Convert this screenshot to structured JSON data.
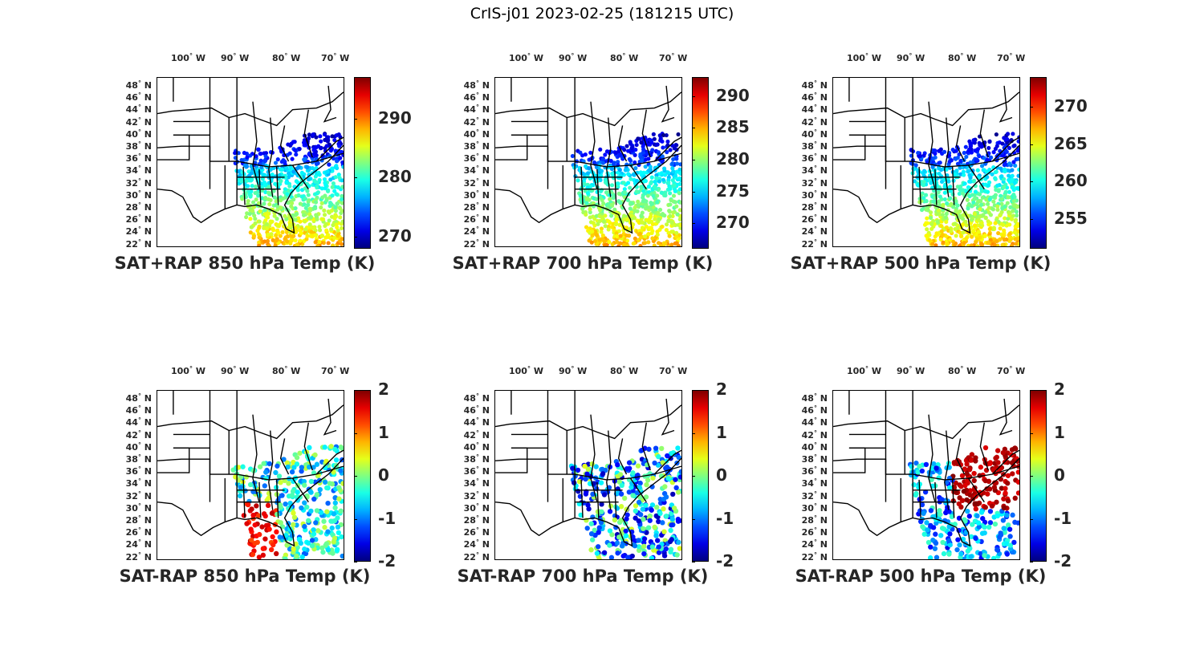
{
  "figure": {
    "title": "CrIS-j01 2023-02-25 (181215 UTC)"
  },
  "lon_labels": [
    "100",
    "90",
    "80",
    "70"
  ],
  "lon_suffix": "W",
  "lat_labels": [
    "48",
    "46",
    "44",
    "42",
    "40",
    "38",
    "36",
    "34",
    "32",
    "30",
    "28",
    "26",
    "24",
    "22"
  ],
  "lat_suffix": "N",
  "panels": [
    {
      "id": "sat-rap-sum-850",
      "title": "SAT+RAP 850 hPa Temp (K)",
      "colorbar": {
        "min": 268,
        "max": 297,
        "ticks": [
          "290",
          "280",
          "270"
        ],
        "tick_values": [
          290,
          280,
          270
        ]
      },
      "field": "sum",
      "level": 850
    },
    {
      "id": "sat-rap-sum-700",
      "title": "SAT+RAP 700 hPa Temp (K)",
      "colorbar": {
        "min": 266,
        "max": 293,
        "ticks": [
          "290",
          "285",
          "280",
          "275",
          "270"
        ],
        "tick_values": [
          290,
          285,
          280,
          275,
          270
        ]
      },
      "field": "sum",
      "level": 700
    },
    {
      "id": "sat-rap-sum-500",
      "title": "SAT+RAP 500 hPa Temp (K)",
      "colorbar": {
        "min": 251,
        "max": 274,
        "ticks": [
          "270",
          "265",
          "260",
          "255"
        ],
        "tick_values": [
          270,
          265,
          260,
          255
        ]
      },
      "field": "sum",
      "level": 500
    },
    {
      "id": "sat-rap-diff-850",
      "title": "SAT-RAP 850 hPa Temp (K)",
      "colorbar": {
        "min": -2,
        "max": 2,
        "ticks": [
          "2",
          "1",
          "0",
          "-1",
          "-2"
        ],
        "tick_values": [
          2,
          1,
          0,
          -1,
          -2
        ]
      },
      "field": "diff",
      "level": 850
    },
    {
      "id": "sat-rap-diff-700",
      "title": "SAT-RAP 700 hPa Temp (K)",
      "colorbar": {
        "min": -2,
        "max": 2,
        "ticks": [
          "2",
          "1",
          "0",
          "-1",
          "-2"
        ],
        "tick_values": [
          2,
          1,
          0,
          -1,
          -2
        ]
      },
      "field": "diff",
      "level": 700
    },
    {
      "id": "sat-rap-diff-500",
      "title": "SAT-RAP 500 hPa Temp (K)",
      "colorbar": {
        "min": -2,
        "max": 2,
        "ticks": [
          "2",
          "1",
          "0",
          "-1",
          "-2"
        ],
        "tick_values": [
          2,
          1,
          0,
          -1,
          -2
        ]
      },
      "field": "diff",
      "level": 500
    }
  ]
}
